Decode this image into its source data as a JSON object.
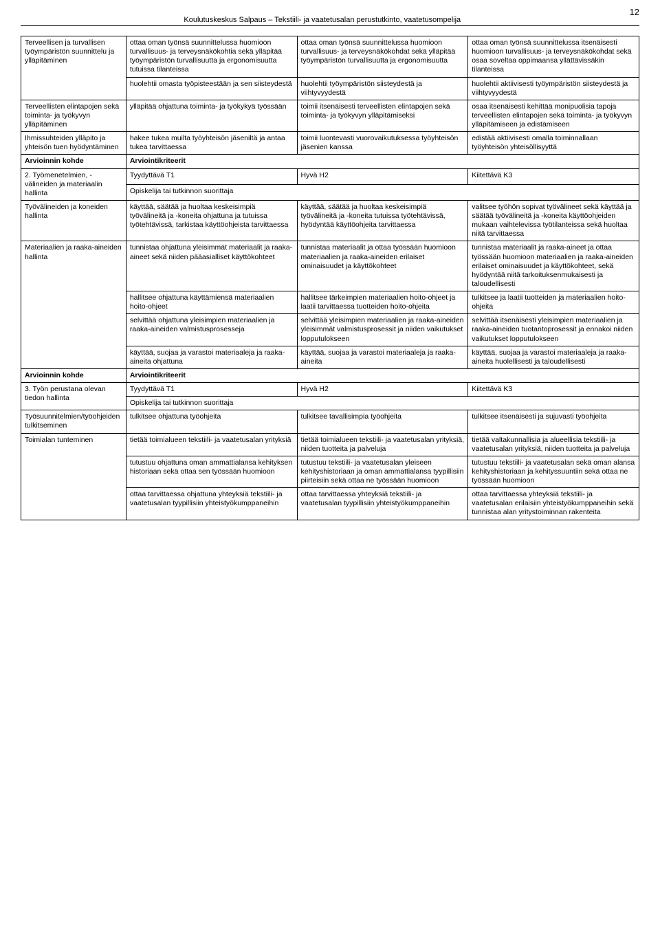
{
  "header": {
    "title": "Koulutuskeskus Salpaus – Tekstiili- ja vaatetusalan perustutkinto, vaatetusompelija",
    "page": "12"
  },
  "rows": [
    {
      "c": [
        {
          "text": "Terveellisen ja turvallisen työympäristön suunnittelu ja ylläpitäminen",
          "rs": 2
        },
        {
          "text": "ottaa oman työnsä suunnittelussa huomioon turvallisuus- ja terveysnäkökohtia sekä ylläpitää työympäristön turvallisuutta ja ergonomisuutta tutuissa tilanteissa"
        },
        {
          "text": "ottaa oman työnsä suunnittelussa huomioon turvallisuus- ja terveysnäkökohdat sekä ylläpitää työympäristön turvallisuutta ja ergonomisuutta"
        },
        {
          "text": "ottaa oman työnsä suunnittelussa itsenäisesti huomioon turvallisuus- ja terveysnäkökohdat sekä osaa soveltaa oppimaansa yllättävissäkin tilanteissa"
        }
      ]
    },
    {
      "c": [
        {
          "text": "huolehtii omasta työpisteestään ja sen siisteydestä"
        },
        {
          "text": "huolehtii työympäristön siisteydestä ja viihtyvyydestä"
        },
        {
          "text": "huolehtii aktiivisesti työympäristön siisteydestä ja viihtyvyydestä"
        }
      ]
    },
    {
      "c": [
        {
          "text": "Terveellisten elintapojen sekä toiminta- ja työkyvyn ylläpitäminen"
        },
        {
          "text": "ylläpitää ohjattuna toiminta- ja työkykyä työssään"
        },
        {
          "text": "toimii itsenäisesti terveellisten elintapojen sekä toiminta- ja työkyvyn ylläpitämiseksi"
        },
        {
          "text": "osaa itsenäisesti kehittää monipuolisia tapoja terveellisten elintapojen sekä toiminta- ja työkyvyn ylläpitämiseen ja edistämiseen"
        }
      ]
    },
    {
      "c": [
        {
          "text": "Ihmissuhteiden ylläpito ja yhteisön tuen hyödyntäminen"
        },
        {
          "text": "hakee tukea muilta työyhteisön jäseniltä ja antaa tukea tarvittaessa"
        },
        {
          "text": "toimii luontevasti vuorovaikutuksessa työyhteisön jäsenien kanssa"
        },
        {
          "text": "edistää aktiivisesti omalla toiminnallaan työyhteisön yhteisöllisyyttä"
        }
      ]
    },
    {
      "c": [
        {
          "text": "Arvioinnin kohde",
          "bold": true
        },
        {
          "text": "Arviointikriteerit",
          "cs": 3,
          "bold": true
        }
      ]
    },
    {
      "c": [
        {
          "text": "2. Työmenetelmien, -välineiden ja materiaalin hallinta",
          "rs": 2
        },
        {
          "text": "Tyydyttävä T1"
        },
        {
          "text": "Hyvä H2"
        },
        {
          "text": "Kiitettävä K3"
        }
      ]
    },
    {
      "c": [
        {
          "text": "Opiskelija tai tutkinnon suorittaja",
          "cs": 3
        }
      ]
    },
    {
      "c": [
        {
          "text": "Työvälineiden ja koneiden hallinta"
        },
        {
          "text": "käyttää, säätää ja huoltaa keskeisimpiä työvälineitä ja -koneita ohjattuna ja tutuissa työtehtävissä, tarkistaa käyttöohjeista tarvittaessa"
        },
        {
          "text": "käyttää, säätää ja huoltaa keskeisimpiä työvälineitä ja -koneita tutuissa työtehtävissä, hyödyntää käyttöohjeita tarvittaessa"
        },
        {
          "text": "valitsee työhön sopivat työvälineet sekä käyttää ja säätää työvälineitä ja -koneita käyttöohjeiden mukaan vaihtelevissa työtilanteissa sekä huoltaa niitä tarvittaessa"
        }
      ]
    },
    {
      "c": [
        {
          "text": "Materiaalien ja raaka-aineiden hallinta",
          "rs": 4
        },
        {
          "text": "tunnistaa ohjattuna yleisimmät materiaalit ja raaka-aineet sekä niiden pääasialliset käyttökohteet"
        },
        {
          "text": "tunnistaa materiaalit ja ottaa työssään huomioon materiaalien ja raaka-aineiden erilaiset ominaisuudet ja käyttökohteet"
        },
        {
          "text": "tunnistaa materiaalit ja raaka-aineet ja ottaa työssään huomioon materiaalien ja raaka-aineiden erilaiset ominaisuudet ja käyttökohteet, sekä hyödyntää niitä tarkoituksenmukaisesti ja taloudellisesti"
        }
      ]
    },
    {
      "c": [
        {
          "text": "hallitsee ohjattuna käyttämiensä materiaalien hoito-ohjeet"
        },
        {
          "text": "hallitsee tärkeimpien materiaalien hoito-ohjeet ja laatii tarvittaessa tuotteiden hoito-ohjeita"
        },
        {
          "text": "tulkitsee ja laatii tuotteiden ja materiaalien hoito-ohjeita"
        }
      ]
    },
    {
      "c": [
        {
          "text": "selvittää ohjattuna yleisimpien materiaalien ja raaka-aineiden valmistusprosesseja"
        },
        {
          "text": "selvittää yleisimpien materiaalien ja raaka-aineiden yleisimmät valmistusprosessit ja niiden vaikutukset lopputulokseen"
        },
        {
          "text": "selvittää itsenäisesti yleisimpien materiaalien ja raaka-aineiden tuotantoprosessit ja ennakoi niiden vaikutukset lopputulokseen"
        }
      ]
    },
    {
      "c": [
        {
          "text": "käyttää, suojaa ja varastoi materiaaleja ja raaka-aineita ohjattuna"
        },
        {
          "text": "käyttää, suojaa ja varastoi materiaaleja ja raaka-aineita"
        },
        {
          "text": "käyttää, suojaa ja varastoi materiaaleja ja raaka-aineita huolellisesti ja taloudellisesti"
        }
      ]
    },
    {
      "c": [
        {
          "text": "Arvioinnin kohde",
          "bold": true
        },
        {
          "text": "Arviointikriteerit",
          "cs": 3,
          "bold": true
        }
      ]
    },
    {
      "c": [
        {
          "text": "3. Työn perustana olevan tiedon hallinta",
          "rs": 2
        },
        {
          "text": "Tyydyttävä T1"
        },
        {
          "text": "Hyvä H2"
        },
        {
          "text": "Kiitettävä K3"
        }
      ]
    },
    {
      "c": [
        {
          "text": "Opiskelija tai tutkinnon suorittaja",
          "cs": 3
        }
      ]
    },
    {
      "c": [
        {
          "text": "Työsuunnitelmien/työohjeiden tulkitseminen"
        },
        {
          "text": "tulkitsee ohjattuna työohjeita"
        },
        {
          "text": "tulkitsee tavallisimpia työohjeita"
        },
        {
          "text": "tulkitsee itsenäisesti ja sujuvasti työohjeita"
        }
      ]
    },
    {
      "c": [
        {
          "text": "Toimialan tunteminen",
          "rs": 3
        },
        {
          "text": "tietää toimialueen tekstiili- ja vaatetusalan yrityksiä"
        },
        {
          "text": "tietää toimialueen tekstiili- ja vaatetusalan yrityksiä, niiden tuotteita ja palveluja"
        },
        {
          "text": "tietää valtakunnallisia ja alueellisia tekstiili- ja vaatetusalan yrityksiä, niiden tuotteita ja palveluja"
        }
      ]
    },
    {
      "c": [
        {
          "text": "tutustuu ohjattuna oman ammattialansa kehityksen historiaan sekä ottaa sen työssään huomioon"
        },
        {
          "text": "tutustuu tekstiili- ja vaatetusalan yleiseen kehityshistoriaan ja oman ammattialansa tyypillisiin piirteisiin sekä ottaa ne työssään huomioon"
        },
        {
          "text": "tutustuu tekstiili- ja vaatetusalan sekä oman alansa kehityshistoriaan ja kehityssuuntiin sekä ottaa ne työssään huomioon"
        }
      ]
    },
    {
      "c": [
        {
          "text": "ottaa tarvittaessa ohjattuna yhteyksiä tekstiili- ja vaatetusalan tyypillisiin yhteistyökumppaneihin"
        },
        {
          "text": "ottaa tarvittaessa yhteyksiä tekstiili- ja vaatetusalan tyypillisiin yhteistyökumppaneihin"
        },
        {
          "text": "ottaa tarvittaessa yhteyksiä tekstiili- ja vaatetusalan erilaisiin yhteistyökumppaneihin sekä tunnistaa alan yritystoiminnan rakenteita"
        }
      ]
    }
  ]
}
